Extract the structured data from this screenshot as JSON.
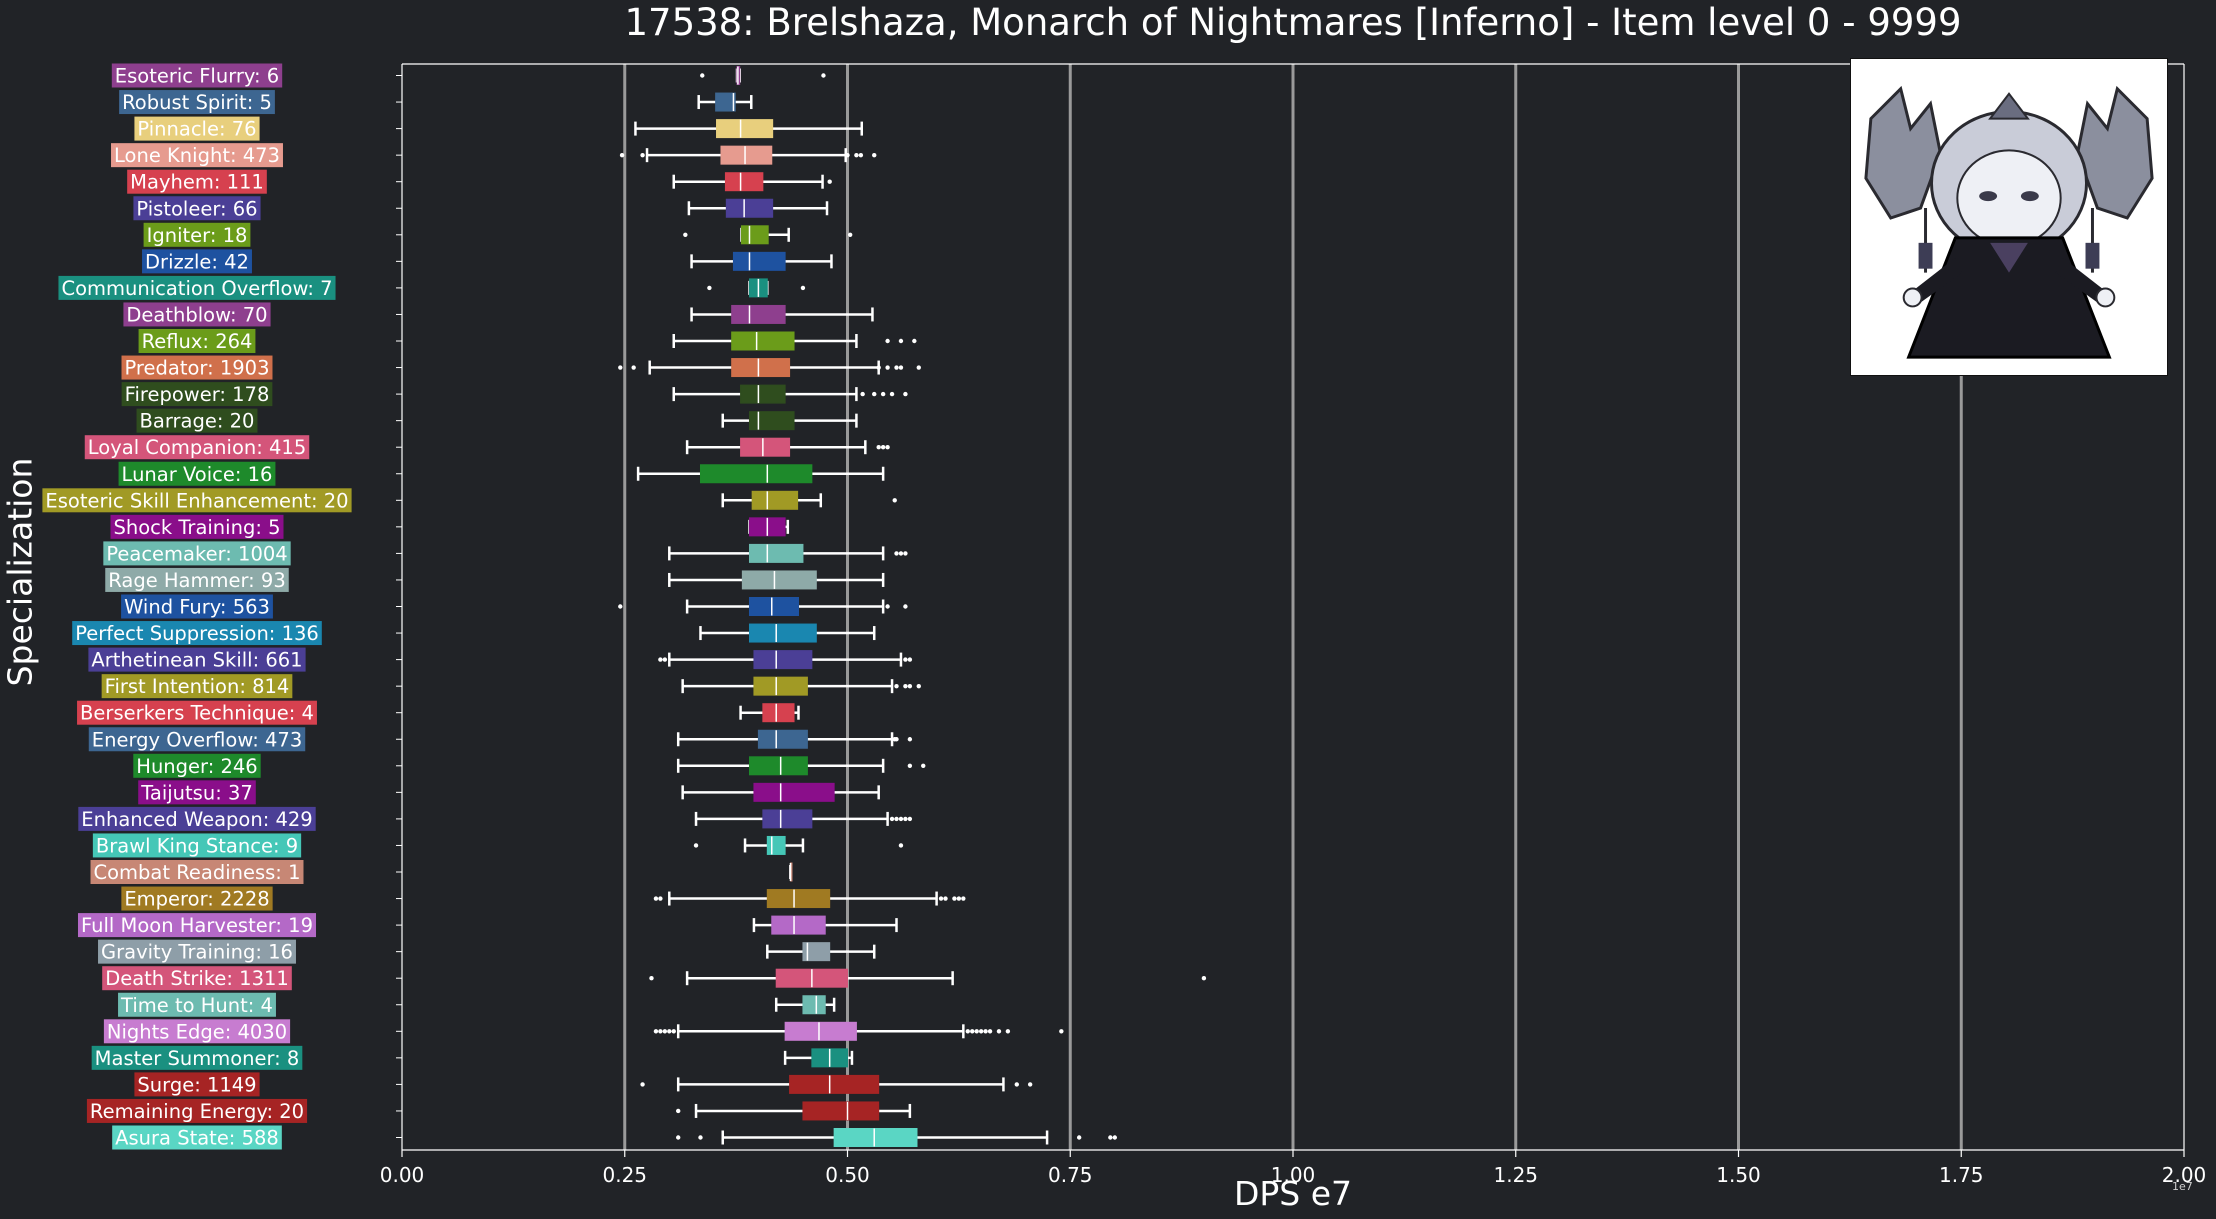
{
  "chart_data": {
    "type": "boxplot",
    "title": "17538: Brelshaza, Monarch of Nightmares [Inferno] - Item level 0 - 9999",
    "xlabel": "DPS e7",
    "ylabel": "Specialization",
    "x_exponent": "1e7",
    "xlim": [
      0,
      2.0
    ],
    "x_ticks": [
      "0.00",
      "0.25",
      "0.50",
      "0.75",
      "1.00",
      "1.25",
      "1.50",
      "1.75",
      "2.00"
    ],
    "grid": "vertical",
    "legend": "none",
    "categories": [
      {
        "label": "Esoteric Flurry: 6",
        "color": "#8e3f8e",
        "whislo": 0.376,
        "q1": 0.376,
        "med": 0.377,
        "q3": 0.379,
        "whishi": 0.379,
        "fliers": [
          0.337,
          0.473
        ]
      },
      {
        "label": "Robust Spirit: 5",
        "color": "#3d6691",
        "whislo": 0.333,
        "q1": 0.352,
        "med": 0.372,
        "q3": 0.374,
        "whishi": 0.392,
        "fliers": []
      },
      {
        "label": "Pinnacle: 76",
        "color": "#e8cf7d",
        "whislo": 0.262,
        "q1": 0.353,
        "med": 0.38,
        "q3": 0.416,
        "whishi": 0.516,
        "fliers": []
      },
      {
        "label": "Lone Knight: 473",
        "color": "#e69b8f",
        "whislo": 0.275,
        "q1": 0.358,
        "med": 0.385,
        "q3": 0.415,
        "whishi": 0.498,
        "fliers": [
          0.247,
          0.27,
          0.5,
          0.51,
          0.515,
          0.53
        ]
      },
      {
        "label": "Mayhem: 111",
        "color": "#d6414f",
        "whislo": 0.305,
        "q1": 0.363,
        "med": 0.38,
        "q3": 0.405,
        "whishi": 0.472,
        "fliers": [
          0.48
        ]
      },
      {
        "label": "Pistoleer: 66",
        "color": "#4b3f96",
        "whislo": 0.322,
        "q1": 0.364,
        "med": 0.384,
        "q3": 0.416,
        "whishi": 0.477,
        "fliers": []
      },
      {
        "label": "Igniter: 18",
        "color": "#6b9c1a",
        "whislo": 0.381,
        "q1": 0.381,
        "med": 0.39,
        "q3": 0.411,
        "whishi": 0.434,
        "fliers": [
          0.318,
          0.503
        ]
      },
      {
        "label": "Drizzle: 42",
        "color": "#1e52a0",
        "whislo": 0.325,
        "q1": 0.372,
        "med": 0.39,
        "q3": 0.43,
        "whishi": 0.482,
        "fliers": []
      },
      {
        "label": "Communication Overflow: 7",
        "color": "#1a9080",
        "whislo": 0.39,
        "q1": 0.39,
        "med": 0.4,
        "q3": 0.41,
        "whishi": 0.41,
        "fliers": [
          0.345,
          0.45
        ]
      },
      {
        "label": "Deathblow: 70",
        "color": "#8e3f8e",
        "whislo": 0.325,
        "q1": 0.37,
        "med": 0.39,
        "q3": 0.43,
        "whishi": 0.528,
        "fliers": []
      },
      {
        "label": "Reflux: 264",
        "color": "#6b9c1a",
        "whislo": 0.305,
        "q1": 0.37,
        "med": 0.398,
        "q3": 0.44,
        "whishi": 0.51,
        "fliers": [
          0.545,
          0.56,
          0.575
        ]
      },
      {
        "label": "Predator: 1903",
        "color": "#d0704b",
        "whislo": 0.278,
        "q1": 0.37,
        "med": 0.4,
        "q3": 0.435,
        "whishi": 0.535,
        "fliers": [
          0.245,
          0.26,
          0.535,
          0.545,
          0.555,
          0.56,
          0.58
        ]
      },
      {
        "label": "Firepower: 178",
        "color": "#2f4d1e",
        "whislo": 0.305,
        "q1": 0.38,
        "med": 0.4,
        "q3": 0.43,
        "whishi": 0.51,
        "fliers": [
          0.517,
          0.53,
          0.54,
          0.55,
          0.565
        ]
      },
      {
        "label": "Barrage: 20",
        "color": "#2f4d1e",
        "whislo": 0.36,
        "q1": 0.39,
        "med": 0.4,
        "q3": 0.44,
        "whishi": 0.51,
        "fliers": []
      },
      {
        "label": "Loyal Companion: 415",
        "color": "#d4557a",
        "whislo": 0.32,
        "q1": 0.38,
        "med": 0.405,
        "q3": 0.435,
        "whishi": 0.52,
        "fliers": [
          0.535,
          0.54,
          0.545
        ]
      },
      {
        "label": "Lunar Voice: 16",
        "color": "#1e8a2b",
        "whislo": 0.265,
        "q1": 0.335,
        "med": 0.41,
        "q3": 0.46,
        "whishi": 0.54,
        "fliers": []
      },
      {
        "label": "Esoteric Skill Enhancement: 20",
        "color": "#a19a25",
        "whislo": 0.36,
        "q1": 0.393,
        "med": 0.41,
        "q3": 0.444,
        "whishi": 0.47,
        "fliers": [
          0.553
        ]
      },
      {
        "label": "Shock Training: 5",
        "color": "#8a0e8a",
        "whislo": 0.39,
        "q1": 0.39,
        "med": 0.41,
        "q3": 0.43,
        "whishi": 0.433,
        "fliers": []
      },
      {
        "label": "Peacemaker: 1004",
        "color": "#6dbbb0",
        "whislo": 0.3,
        "q1": 0.39,
        "med": 0.41,
        "q3": 0.45,
        "whishi": 0.54,
        "fliers": [
          0.555,
          0.56,
          0.565
        ]
      },
      {
        "label": "Rage Hammer: 93",
        "color": "#8eaaa8",
        "whislo": 0.3,
        "q1": 0.382,
        "med": 0.418,
        "q3": 0.465,
        "whishi": 0.54,
        "fliers": []
      },
      {
        "label": "Wind Fury: 563",
        "color": "#1e52a0",
        "whislo": 0.32,
        "q1": 0.39,
        "med": 0.415,
        "q3": 0.445,
        "whishi": 0.54,
        "fliers": [
          0.245,
          0.545,
          0.565
        ]
      },
      {
        "label": "Perfect Suppression: 136",
        "color": "#1a87b0",
        "whislo": 0.335,
        "q1": 0.39,
        "med": 0.42,
        "q3": 0.465,
        "whishi": 0.53,
        "fliers": []
      },
      {
        "label": "Arthetinean Skill: 661",
        "color": "#4b3f96",
        "whislo": 0.3,
        "q1": 0.395,
        "med": 0.42,
        "q3": 0.46,
        "whishi": 0.56,
        "fliers": [
          0.29,
          0.295,
          0.565,
          0.57
        ]
      },
      {
        "label": "First Intention: 814",
        "color": "#a19a25",
        "whislo": 0.315,
        "q1": 0.395,
        "med": 0.42,
        "q3": 0.455,
        "whishi": 0.55,
        "fliers": [
          0.555,
          0.565,
          0.57,
          0.58
        ]
      },
      {
        "label": "Berserkers Technique: 4",
        "color": "#d6414f",
        "whislo": 0.38,
        "q1": 0.405,
        "med": 0.42,
        "q3": 0.44,
        "whishi": 0.445,
        "fliers": []
      },
      {
        "label": "Energy Overflow: 473",
        "color": "#3d6691",
        "whislo": 0.31,
        "q1": 0.4,
        "med": 0.42,
        "q3": 0.455,
        "whishi": 0.55,
        "fliers": [
          0.553,
          0.555,
          0.57
        ]
      },
      {
        "label": "Hunger: 246",
        "color": "#1e8a2b",
        "whislo": 0.31,
        "q1": 0.39,
        "med": 0.425,
        "q3": 0.455,
        "whishi": 0.54,
        "fliers": [
          0.57,
          0.585
        ]
      },
      {
        "label": "Taijutsu: 37",
        "color": "#8a0e8a",
        "whislo": 0.315,
        "q1": 0.395,
        "med": 0.425,
        "q3": 0.485,
        "whishi": 0.535,
        "fliers": []
      },
      {
        "label": "Enhanced Weapon: 429",
        "color": "#4b3f96",
        "whislo": 0.33,
        "q1": 0.405,
        "med": 0.425,
        "q3": 0.46,
        "whishi": 0.545,
        "fliers": [
          0.55,
          0.555,
          0.56,
          0.565,
          0.57
        ]
      },
      {
        "label": "Brawl King Stance: 9",
        "color": "#45c7b7",
        "whislo": 0.385,
        "q1": 0.41,
        "med": 0.415,
        "q3": 0.43,
        "whishi": 0.45,
        "fliers": [
          0.33,
          0.56
        ]
      },
      {
        "label": "Combat Readiness: 1",
        "color": "#c78775",
        "whislo": 0.436,
        "q1": 0.436,
        "med": 0.436,
        "q3": 0.436,
        "whishi": 0.436,
        "fliers": []
      },
      {
        "label": "Emperor: 2228",
        "color": "#a07a22",
        "whislo": 0.3,
        "q1": 0.41,
        "med": 0.44,
        "q3": 0.48,
        "whishi": 0.6,
        "fliers": [
          0.285,
          0.29,
          0.605,
          0.61,
          0.62,
          0.625,
          0.63
        ]
      },
      {
        "label": "Full Moon Harvester: 19",
        "color": "#b469c7",
        "whislo": 0.395,
        "q1": 0.415,
        "med": 0.44,
        "q3": 0.475,
        "whishi": 0.555,
        "fliers": []
      },
      {
        "label": "Gravity Training: 16",
        "color": "#8e9ea8",
        "whislo": 0.41,
        "q1": 0.45,
        "med": 0.455,
        "q3": 0.48,
        "whishi": 0.53,
        "fliers": []
      },
      {
        "label": "Death Strike: 1311",
        "color": "#d4557a",
        "whislo": 0.32,
        "q1": 0.42,
        "med": 0.46,
        "q3": 0.5,
        "whishi": 0.618,
        "fliers": [
          0.28,
          0.9
        ]
      },
      {
        "label": "Time to Hunt: 4",
        "color": "#6dbbb0",
        "whislo": 0.42,
        "q1": 0.45,
        "med": 0.465,
        "q3": 0.475,
        "whishi": 0.485,
        "fliers": []
      },
      {
        "label": "Nights Edge: 4030",
        "color": "#c77cd0",
        "whislo": 0.31,
        "q1": 0.43,
        "med": 0.468,
        "q3": 0.51,
        "whishi": 0.63,
        "fliers": [
          0.285,
          0.29,
          0.295,
          0.3,
          0.305,
          0.635,
          0.64,
          0.645,
          0.65,
          0.655,
          0.66,
          0.67,
          0.68,
          0.74
        ]
      },
      {
        "label": "Master Summoner: 8",
        "color": "#1a9080",
        "whislo": 0.43,
        "q1": 0.46,
        "med": 0.48,
        "q3": 0.5,
        "whishi": 0.505,
        "fliers": []
      },
      {
        "label": "Surge: 1149",
        "color": "#a62424",
        "whislo": 0.31,
        "q1": 0.435,
        "med": 0.48,
        "q3": 0.535,
        "whishi": 0.675,
        "fliers": [
          0.27,
          0.69,
          0.705
        ]
      },
      {
        "label": "Remaining Energy: 20",
        "color": "#a62424",
        "whislo": 0.33,
        "q1": 0.45,
        "med": 0.5,
        "q3": 0.535,
        "whishi": 0.57,
        "fliers": [
          0.31
        ]
      },
      {
        "label": "Asura State: 588",
        "color": "#5ad6c4",
        "whislo": 0.36,
        "q1": 0.485,
        "med": 0.53,
        "q3": 0.578,
        "whishi": 0.724,
        "fliers": [
          0.31,
          0.335,
          0.76,
          0.795,
          0.8
        ]
      }
    ]
  },
  "inset_image": {
    "icon": "brelshaza-chibi-icon"
  }
}
